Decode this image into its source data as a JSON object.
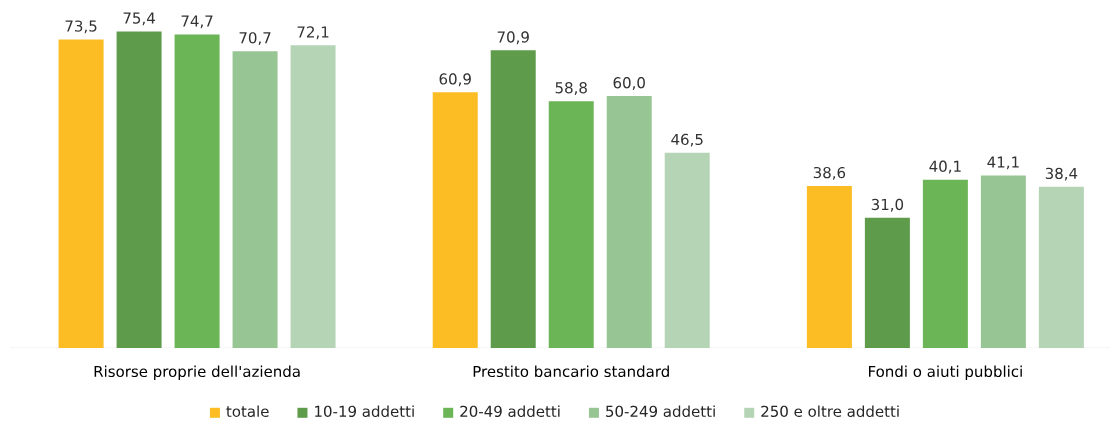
{
  "chart_data": {
    "type": "bar",
    "categories": [
      "Risorse proprie dell'azienda",
      "Prestito bancario standard",
      "Fondi o aiuti pubblici"
    ],
    "series": [
      {
        "name": "totale",
        "color": "#fbbc24",
        "values": [
          73.5,
          60.9,
          38.6
        ],
        "value_labels": [
          "73,5",
          "60,9",
          "38,6"
        ]
      },
      {
        "name": "10-19 addetti",
        "color": "#5e9b4b",
        "values": [
          75.4,
          70.9,
          31.0
        ],
        "value_labels": [
          "75,4",
          "70,9",
          "31,0"
        ]
      },
      {
        "name": "20-49 addetti",
        "color": "#6bb556",
        "values": [
          74.7,
          58.8,
          40.1
        ],
        "value_labels": [
          "74,7",
          "58,8",
          "40,1"
        ]
      },
      {
        "name": "50-249 addetti",
        "color": "#98c594",
        "values": [
          70.7,
          60.0,
          41.1
        ],
        "value_labels": [
          "70,7",
          "60,0",
          "41,1"
        ]
      },
      {
        "name": "250 e oltre addetti",
        "color": "#b5d4b6",
        "values": [
          72.1,
          46.5,
          38.4
        ],
        "value_labels": [
          "72,1",
          "46,5",
          "38,4"
        ]
      }
    ],
    "tick_labels": "x",
    "legend": "bottom"
  }
}
